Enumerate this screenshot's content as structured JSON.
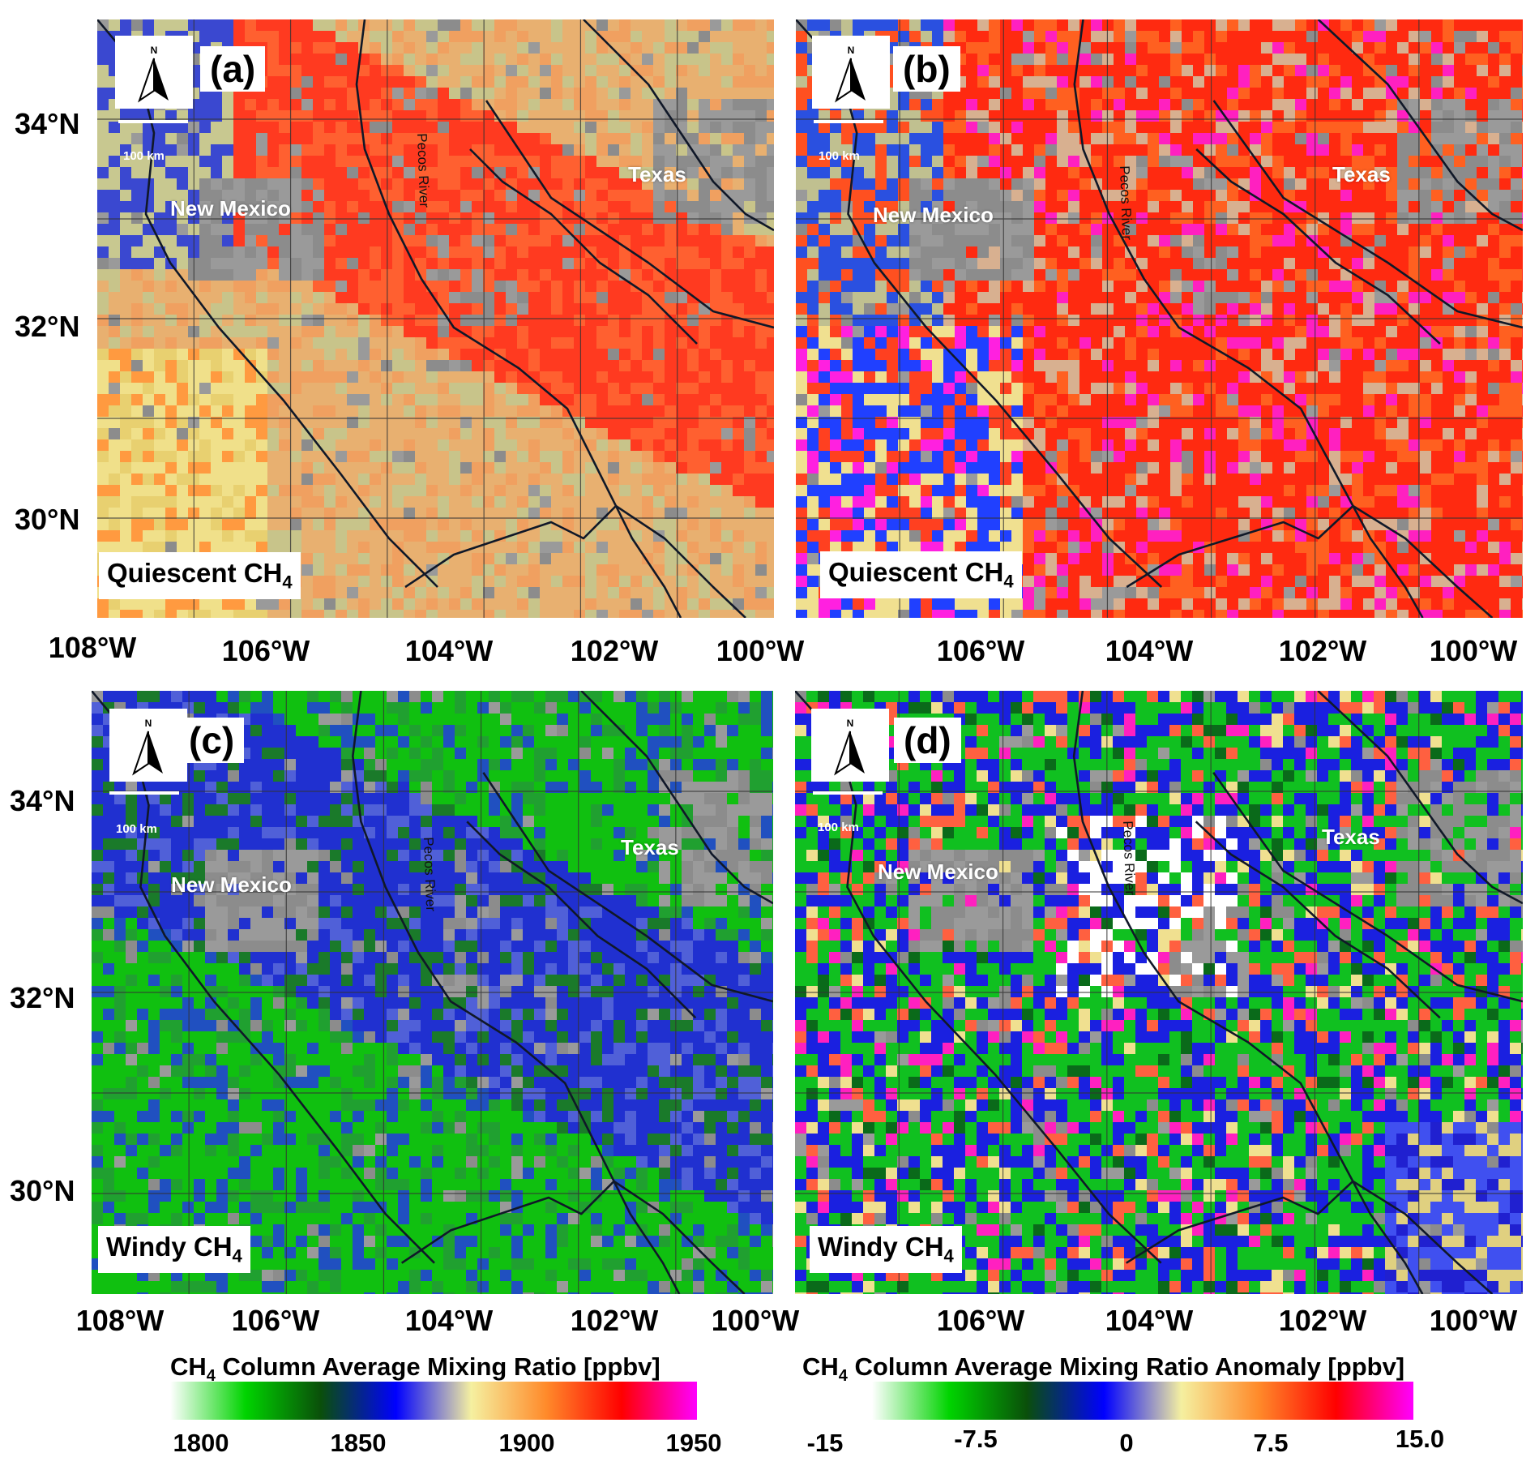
{
  "panels": [
    {
      "id": "a",
      "letter": "(a)",
      "caption_prefix": "Quiescent CH",
      "caption_sub": "4",
      "scale_text": "100 km",
      "state_left": "New Mexico",
      "state_right": "Texas",
      "river": "Pecos River",
      "scheme": "abs_quiescent"
    },
    {
      "id": "b",
      "letter": "(b)",
      "caption_prefix": "Quiescent CH",
      "caption_sub": "4",
      "scale_text": "100 km",
      "state_left": "New Mexico",
      "state_right": "Texas",
      "river": "Pecos River",
      "scheme": "anom_quiescent"
    },
    {
      "id": "c",
      "letter": "(c)",
      "caption_prefix": "Windy CH",
      "caption_sub": "4",
      "scale_text": "100 km",
      "state_left": "New Mexico",
      "state_right": "Texas",
      "river": "Pecos River",
      "scheme": "abs_windy"
    },
    {
      "id": "d",
      "letter": "(d)",
      "caption_prefix": "Windy CH",
      "caption_sub": "4",
      "scale_text": "100 km",
      "state_left": "New Mexico",
      "state_right": "Texas",
      "river": "Pecos River",
      "scheme": "anom_windy"
    }
  ],
  "north_label": "N",
  "lat_labels": [
    "34°N",
    "32°N",
    "30°N"
  ],
  "lon_labels_left": [
    "108°W",
    "106°W",
    "104°W",
    "102°W",
    "100°W"
  ],
  "lon_labels_right": [
    "106°W",
    "104°W",
    "102°W",
    "100°W"
  ],
  "colorbars": [
    {
      "title_pre": "CH",
      "title_sub": "4",
      "title_post": " Column Average Mixing Ratio [ppbv]",
      "ticks": [
        "1800",
        "1850",
        "1900",
        "1950"
      ],
      "colors": [
        "#ffffff",
        "#00d400",
        "#0a4f0a",
        "#0000ff",
        "#f5f0a0",
        "#ff8a2a",
        "#ff0000",
        "#ff00ff"
      ]
    },
    {
      "title_pre": "CH",
      "title_sub": "4",
      "title_post": " Column Average Mixing Ratio Anomaly [ppbv]",
      "ticks": [
        "-15",
        "-7.5",
        "0",
        "7.5",
        "15.0"
      ],
      "colors": [
        "#ffffff",
        "#00d400",
        "#0a4f0a",
        "#0000ff",
        "#f5f0a0",
        "#ff8a2a",
        "#ff0000",
        "#ff00ff"
      ]
    }
  ]
}
